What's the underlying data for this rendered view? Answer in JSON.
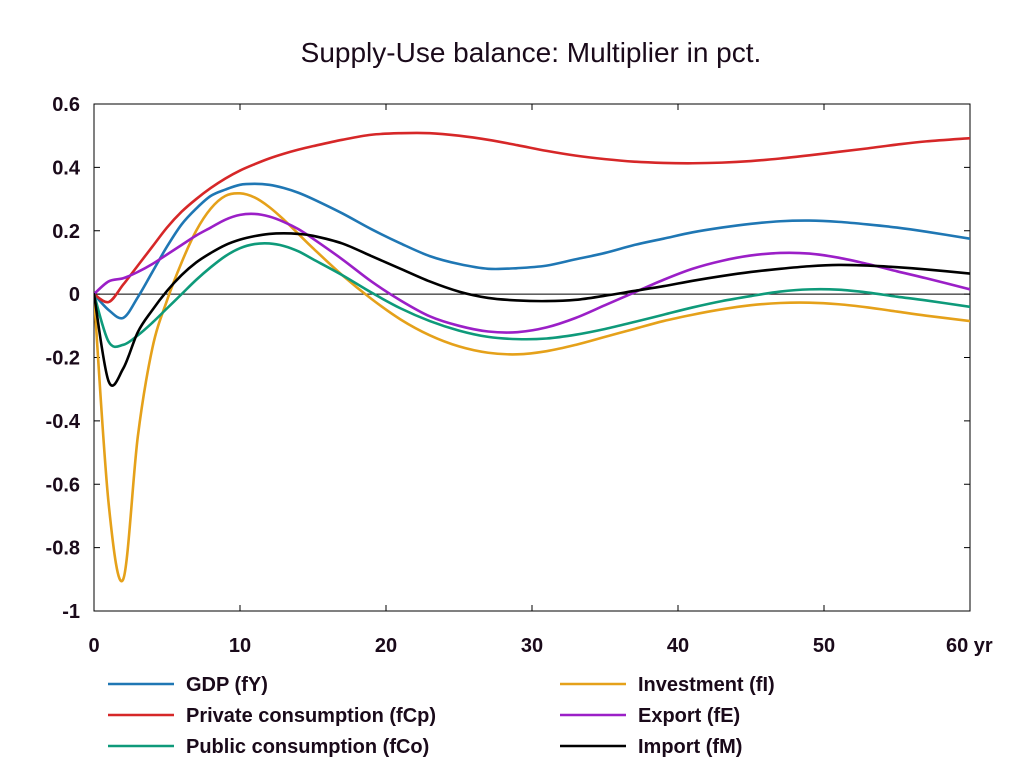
{
  "chart_data": {
    "type": "line",
    "title": "Supply-Use balance: Multiplier in pct.",
    "xlabel": "",
    "ylabel": "",
    "x_unit_label": "yr",
    "xlim": [
      0,
      60
    ],
    "ylim": [
      -1,
      0.6
    ],
    "x_ticks": [
      0,
      10,
      20,
      30,
      40,
      50,
      60
    ],
    "y_ticks": [
      -1,
      -0.8,
      -0.6,
      -0.4,
      -0.2,
      0,
      0.2,
      0.4,
      0.6
    ],
    "x_tick_labels": [
      "0",
      "10",
      "20",
      "30",
      "40",
      "50",
      "60 yr"
    ],
    "y_tick_labels": [
      "-1",
      "-0.8",
      "-0.6",
      "-0.4",
      "-0.2",
      "0",
      "0.2",
      "0.4",
      "0.6"
    ],
    "grid": false,
    "zero_line": true,
    "legend_placement": "bottom",
    "series": [
      {
        "name": "GDP (fY)",
        "color": "#1f77b4",
        "x": [
          0,
          1,
          2,
          3,
          4,
          5,
          6,
          7,
          8,
          9,
          10,
          11,
          12,
          13,
          14,
          15,
          17,
          19,
          21,
          23,
          25,
          27,
          29,
          31,
          33,
          35,
          37,
          39,
          41,
          43,
          45,
          47,
          49,
          51,
          53,
          55,
          57,
          60
        ],
        "y": [
          0,
          -0.05,
          -0.075,
          -0.01,
          0.07,
          0.15,
          0.22,
          0.27,
          0.31,
          0.33,
          0.345,
          0.348,
          0.345,
          0.335,
          0.32,
          0.3,
          0.255,
          0.205,
          0.16,
          0.12,
          0.095,
          0.08,
          0.082,
          0.09,
          0.11,
          0.13,
          0.155,
          0.175,
          0.195,
          0.21,
          0.222,
          0.23,
          0.232,
          0.228,
          0.22,
          0.21,
          0.197,
          0.175
        ]
      },
      {
        "name": "Investment (fI)",
        "color": "#e5a11a",
        "x": [
          0,
          1,
          2,
          3,
          4,
          5,
          6,
          7,
          8,
          9,
          10,
          11,
          12,
          13,
          14,
          15,
          17,
          19,
          21,
          23,
          25,
          27,
          29,
          31,
          33,
          35,
          37,
          39,
          41,
          43,
          45,
          47,
          49,
          51,
          53,
          55,
          57,
          60
        ],
        "y": [
          0,
          -0.66,
          -0.9,
          -0.45,
          -0.17,
          -0.02,
          0.1,
          0.2,
          0.27,
          0.31,
          0.318,
          0.305,
          0.275,
          0.235,
          0.19,
          0.145,
          0.06,
          -0.015,
          -0.08,
          -0.13,
          -0.165,
          -0.185,
          -0.19,
          -0.18,
          -0.16,
          -0.135,
          -0.11,
          -0.085,
          -0.065,
          -0.048,
          -0.035,
          -0.028,
          -0.027,
          -0.032,
          -0.042,
          -0.055,
          -0.068,
          -0.085
        ]
      },
      {
        "name": "Private consumption (fCp)",
        "color": "#d62728",
        "x": [
          0,
          1,
          2,
          3,
          4,
          5,
          6,
          7,
          8,
          9,
          10,
          11,
          12,
          13,
          14,
          15,
          17,
          19,
          21,
          23,
          25,
          27,
          29,
          31,
          33,
          35,
          37,
          39,
          41,
          43,
          45,
          47,
          49,
          51,
          53,
          55,
          57,
          60
        ],
        "y": [
          0,
          -0.025,
          0.03,
          0.09,
          0.15,
          0.21,
          0.26,
          0.3,
          0.335,
          0.365,
          0.39,
          0.41,
          0.428,
          0.443,
          0.456,
          0.467,
          0.487,
          0.503,
          0.508,
          0.508,
          0.5,
          0.487,
          0.47,
          0.452,
          0.437,
          0.426,
          0.418,
          0.414,
          0.413,
          0.415,
          0.42,
          0.428,
          0.438,
          0.449,
          0.46,
          0.472,
          0.482,
          0.492
        ]
      },
      {
        "name": "Export (fE)",
        "color": "#9b1fc7",
        "x": [
          0,
          1,
          2,
          3,
          4,
          5,
          6,
          7,
          8,
          9,
          10,
          11,
          12,
          13,
          14,
          15,
          17,
          19,
          21,
          23,
          25,
          27,
          29,
          31,
          33,
          35,
          37,
          39,
          41,
          43,
          45,
          47,
          49,
          51,
          53,
          55,
          57,
          60
        ],
        "y": [
          0,
          0.04,
          0.05,
          0.07,
          0.095,
          0.125,
          0.155,
          0.185,
          0.21,
          0.235,
          0.25,
          0.253,
          0.245,
          0.228,
          0.205,
          0.175,
          0.11,
          0.04,
          -0.02,
          -0.07,
          -0.1,
          -0.118,
          -0.12,
          -0.105,
          -0.075,
          -0.035,
          0.005,
          0.045,
          0.08,
          0.105,
          0.122,
          0.13,
          0.128,
          0.115,
          0.095,
          0.072,
          0.05,
          0.015
        ]
      },
      {
        "name": "Public consumption (fCo)",
        "color": "#0e9a7a",
        "x": [
          0,
          1,
          2,
          3,
          4,
          5,
          6,
          7,
          8,
          9,
          10,
          11,
          12,
          13,
          14,
          15,
          17,
          19,
          21,
          23,
          25,
          27,
          29,
          31,
          33,
          35,
          37,
          39,
          41,
          43,
          45,
          47,
          49,
          51,
          53,
          55,
          57,
          60
        ],
        "y": [
          0,
          -0.15,
          -0.16,
          -0.13,
          -0.09,
          -0.045,
          0.0,
          0.045,
          0.085,
          0.12,
          0.145,
          0.158,
          0.16,
          0.152,
          0.135,
          0.11,
          0.06,
          0.005,
          -0.045,
          -0.085,
          -0.115,
          -0.135,
          -0.142,
          -0.14,
          -0.128,
          -0.11,
          -0.088,
          -0.065,
          -0.042,
          -0.022,
          -0.006,
          0.008,
          0.015,
          0.014,
          0.005,
          -0.008,
          -0.02,
          -0.04
        ]
      },
      {
        "name": "Import (fM)",
        "color": "#000000",
        "x": [
          0,
          1,
          2,
          3,
          4,
          5,
          6,
          7,
          8,
          9,
          10,
          11,
          12,
          13,
          14,
          15,
          17,
          19,
          21,
          23,
          25,
          27,
          29,
          31,
          33,
          35,
          37,
          39,
          41,
          43,
          45,
          47,
          49,
          51,
          53,
          55,
          57,
          60
        ],
        "y": [
          0,
          -0.275,
          -0.235,
          -0.12,
          -0.05,
          0.01,
          0.06,
          0.1,
          0.13,
          0.155,
          0.172,
          0.183,
          0.19,
          0.192,
          0.19,
          0.184,
          0.16,
          0.12,
          0.08,
          0.04,
          0.008,
          -0.012,
          -0.02,
          -0.022,
          -0.018,
          -0.005,
          0.01,
          0.025,
          0.042,
          0.057,
          0.07,
          0.08,
          0.088,
          0.092,
          0.09,
          0.085,
          0.078,
          0.065
        ]
      }
    ],
    "legend": {
      "left": [
        "GDP (fY)",
        "Private consumption (fCp)",
        "Public consumption (fCo)"
      ],
      "right": [
        "Investment (fI)",
        "Export (fE)",
        "Import (fM)"
      ]
    }
  }
}
